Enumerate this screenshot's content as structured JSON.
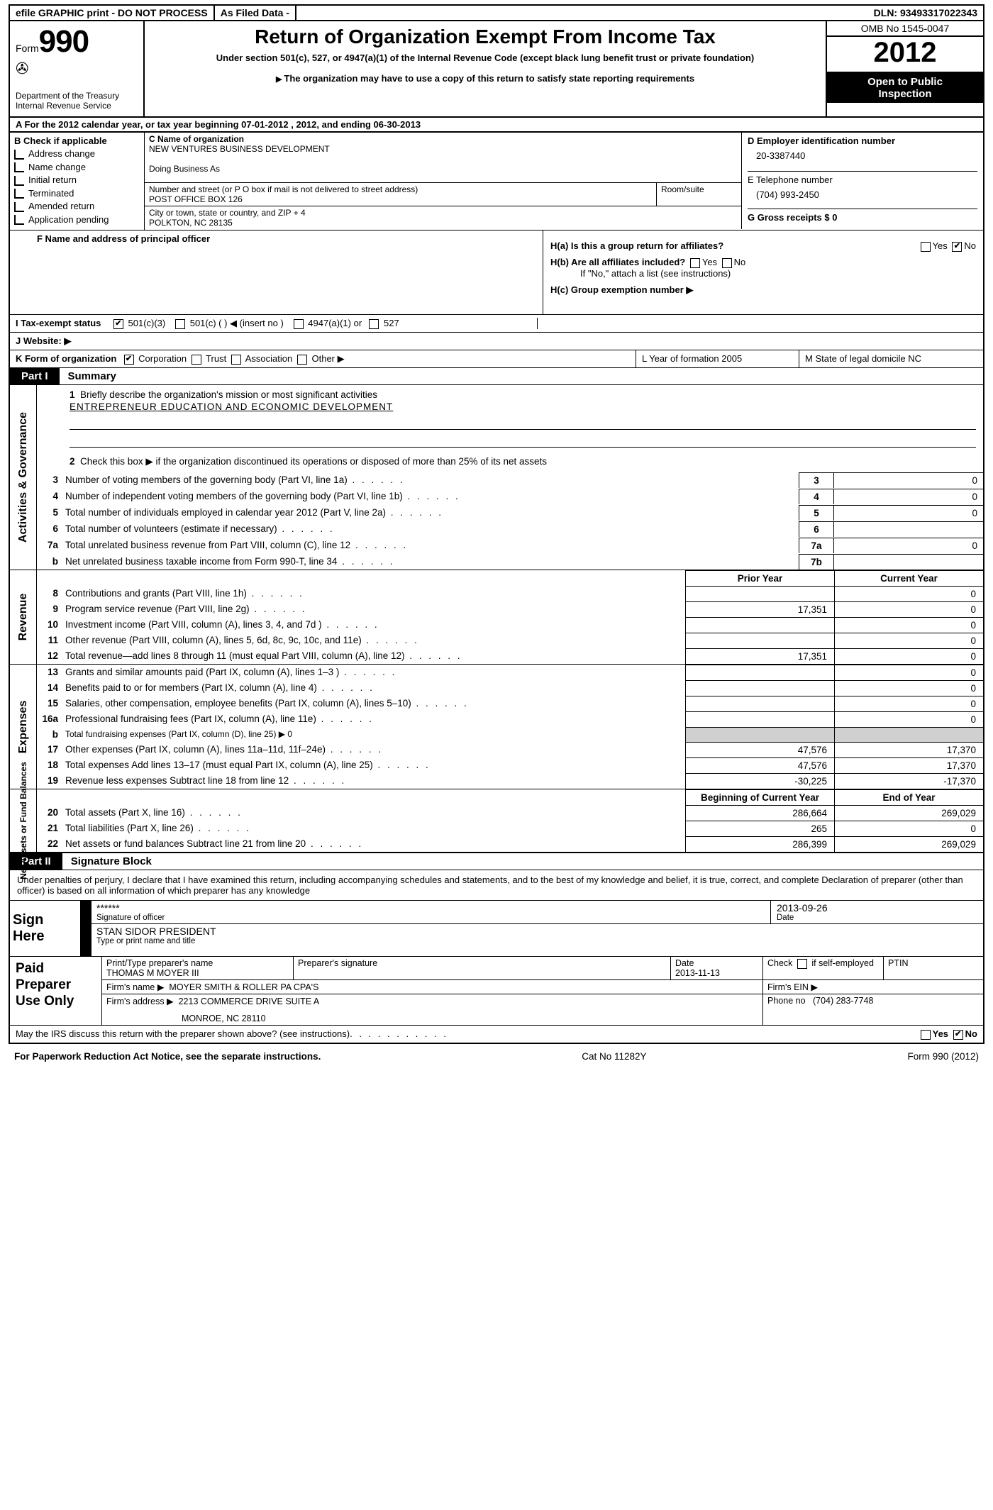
{
  "topbar": {
    "efile": "efile GRAPHIC print - DO NOT PROCESS",
    "asfiled": "As Filed Data -",
    "dln_label": "DLN:",
    "dln": "93493317022343"
  },
  "header": {
    "form_prefix": "Form",
    "form_no": "990",
    "dept": "Department of the Treasury",
    "irs": "Internal Revenue Service",
    "title": "Return of Organization Exempt From Income Tax",
    "sub1": "Under section 501(c), 527, or 4947(a)(1) of the Internal Revenue Code (except black lung benefit trust or private foundation)",
    "sub2": "The organization may have to use a copy of this return to satisfy state reporting requirements",
    "omb": "OMB No 1545-0047",
    "year": "2012",
    "inspection1": "Open to Public",
    "inspection2": "Inspection"
  },
  "lineA": "A  For the 2012 calendar year, or tax year beginning 07-01-2012     , 2012, and ending 06-30-2013",
  "secB": {
    "b_label": "B Check if applicable",
    "checks": [
      "Address change",
      "Name change",
      "Initial return",
      "Terminated",
      "Amended return",
      "Application pending"
    ],
    "c_label": "C Name of organization",
    "org_name": "NEW VENTURES BUSINESS DEVELOPMENT",
    "dba_label": "Doing Business As",
    "addr_label": "Number and street (or P O  box if mail is not delivered to street address)",
    "room_label": "Room/suite",
    "addr": "POST OFFICE BOX 126",
    "city_label": "City or town, state or country, and ZIP + 4",
    "city": "POLKTON, NC  28135",
    "d_label": "D Employer identification number",
    "ein": "20-3387440",
    "e_label": "E Telephone number",
    "phone": "(704) 993-2450",
    "g_label": "G Gross receipts $ 0"
  },
  "principal": {
    "f_label": "F  Name and address of principal officer",
    "ha": "H(a)  Is this a group return for affiliates?",
    "hb": "H(b)  Are all affiliates included?",
    "hb_note": "If \"No,\" attach a list  (see instructions)",
    "hc": "H(c)   Group exemption number ▶"
  },
  "lineI": "I   Tax-exempt status",
  "lineI_opts": [
    "501(c)(3)",
    "501(c) (   ) ◀ (insert no )",
    "4947(a)(1) or",
    "527"
  ],
  "lineJ": "J   Website: ▶",
  "lineK": "K Form of organization",
  "lineK_opts": [
    "Corporation",
    "Trust",
    "Association",
    "Other ▶"
  ],
  "lineL": "L Year of formation  2005",
  "lineM": "M State of legal domicile  NC",
  "part1": {
    "tag": "Part I",
    "title": "Summary",
    "q1": "Briefly describe the organization's mission or most significant activities",
    "mission": "ENTREPRENEUR EDUCATION AND ECONOMIC DEVELOPMENT",
    "q2": "Check this box ▶     if the organization discontinued its operations or disposed of more than 25% of its net assets",
    "rows_gov": [
      {
        "n": "3",
        "d": "Number of voting members of the governing body (Part VI, line 1a)",
        "cn": "3",
        "v": "0"
      },
      {
        "n": "4",
        "d": "Number of independent voting members of the governing body (Part VI, line 1b)",
        "cn": "4",
        "v": "0"
      },
      {
        "n": "5",
        "d": "Total number of individuals employed in calendar year 2012 (Part V, line 2a)",
        "cn": "5",
        "v": "0"
      },
      {
        "n": "6",
        "d": "Total number of volunteers (estimate if necessary)",
        "cn": "6",
        "v": ""
      },
      {
        "n": "7a",
        "d": "Total unrelated business revenue from Part VIII, column (C), line 12",
        "cn": "7a",
        "v": "0"
      },
      {
        "n": "b",
        "d": "Net unrelated business taxable income from Form 990-T, line 34",
        "cn": "7b",
        "v": ""
      }
    ],
    "col_hdr1": "Prior Year",
    "col_hdr2": "Current Year",
    "rows_rev": [
      {
        "n": "8",
        "d": "Contributions and grants (Part VIII, line 1h)",
        "c1": "",
        "c2": "0"
      },
      {
        "n": "9",
        "d": "Program service revenue (Part VIII, line 2g)",
        "c1": "17,351",
        "c2": "0"
      },
      {
        "n": "10",
        "d": "Investment income (Part VIII, column (A), lines 3, 4, and 7d )",
        "c1": "",
        "c2": "0"
      },
      {
        "n": "11",
        "d": "Other revenue (Part VIII, column (A), lines 5, 6d, 8c, 9c, 10c, and 11e)",
        "c1": "",
        "c2": "0"
      },
      {
        "n": "12",
        "d": "Total revenue—add lines 8 through 11 (must equal Part VIII, column (A), line 12)",
        "c1": "17,351",
        "c2": "0"
      }
    ],
    "rows_exp": [
      {
        "n": "13",
        "d": "Grants and similar amounts paid (Part IX, column (A), lines 1–3 )",
        "c1": "",
        "c2": "0"
      },
      {
        "n": "14",
        "d": "Benefits paid to or for members (Part IX, column (A), line 4)",
        "c1": "",
        "c2": "0"
      },
      {
        "n": "15",
        "d": "Salaries, other compensation, employee benefits (Part IX, column (A), lines 5–10)",
        "c1": "",
        "c2": "0"
      },
      {
        "n": "16a",
        "d": "Professional fundraising fees (Part IX, column (A), line 11e)",
        "c1": "",
        "c2": "0"
      },
      {
        "n": "b",
        "d": "Total fundraising expenses (Part IX, column (D), line 25) ▶ 0",
        "c1": "—",
        "c2": "—"
      },
      {
        "n": "17",
        "d": "Other expenses (Part IX, column (A), lines 11a–11d, 11f–24e)",
        "c1": "47,576",
        "c2": "17,370"
      },
      {
        "n": "18",
        "d": "Total expenses  Add lines 13–17 (must equal Part IX, column (A), line 25)",
        "c1": "47,576",
        "c2": "17,370"
      },
      {
        "n": "19",
        "d": "Revenue less expenses  Subtract line 18 from line 12",
        "c1": "-30,225",
        "c2": "-17,370"
      }
    ],
    "col_hdr3": "Beginning of Current Year",
    "col_hdr4": "End of Year",
    "rows_net": [
      {
        "n": "20",
        "d": "Total assets (Part X, line 16)",
        "c1": "286,664",
        "c2": "269,029"
      },
      {
        "n": "21",
        "d": "Total liabilities (Part X, line 26)",
        "c1": "265",
        "c2": "0"
      },
      {
        "n": "22",
        "d": "Net assets or fund balances  Subtract line 21 from line 20",
        "c1": "286,399",
        "c2": "269,029"
      }
    ]
  },
  "part2": {
    "tag": "Part II",
    "title": "Signature Block",
    "intro": "Under penalties of perjury, I declare that I have examined this return, including accompanying schedules and statements, and to the best of my knowledge and belief, it is true, correct, and complete  Declaration of preparer (other than officer) is based on all information of which preparer has any knowledge",
    "sign_here": "Sign Here",
    "sig_stars": "******",
    "sig_officer_lbl": "Signature of officer",
    "sig_date": "2013-09-26",
    "date_lbl": "Date",
    "officer_name": "STAN SIDOR  PRESIDENT",
    "type_name_lbl": "Type or print name and title",
    "paid": "Paid Preparer Use Only",
    "prep_name_lbl": "Print/Type preparer's name",
    "prep_name": "THOMAS M MOYER III",
    "prep_sig_lbl": "Preparer's signature",
    "prep_date_lbl": "Date",
    "prep_date": "2013-11-13",
    "self_emp": "Check        if self-employed",
    "ptin": "PTIN",
    "firm_name_lbl": "Firm's name    ▶",
    "firm_name": "MOYER SMITH & ROLLER PA CPA'S",
    "firm_ein": "Firm's EIN ▶",
    "firm_addr_lbl": "Firm's address ▶",
    "firm_addr1": "2213 COMMERCE DRIVE SUITE A",
    "firm_addr2": "MONROE, NC  28110",
    "firm_phone_lbl": "Phone no",
    "firm_phone": "(704) 283-7748",
    "discuss": "May the IRS discuss this return with the preparer shown above? (see instructions)"
  },
  "footer": {
    "left": "For Paperwork Reduction Act Notice, see the separate instructions.",
    "mid": "Cat No  11282Y",
    "right": "Form 990 (2012)"
  },
  "vlabels": {
    "gov": "Activities & Governance",
    "rev": "Revenue",
    "exp": "Expenses",
    "net": "Net Assets or Fund Balances"
  }
}
